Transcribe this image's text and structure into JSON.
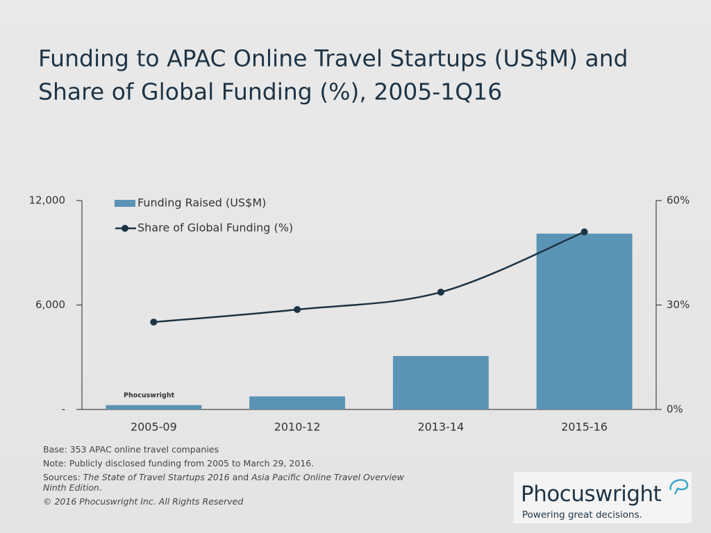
{
  "chart_data": {
    "type": "bar",
    "title": "Funding to APAC Online Travel Startups (US$M) and",
    "title_line2": "Share of Global Funding (%), 2005-1Q16",
    "categories": [
      "2005-09",
      "2010-12",
      "2013-14",
      "2015-16"
    ],
    "series": [
      {
        "name": "Funding Raised (US$M)",
        "type": "bar",
        "color": "#5b93b5",
        "values": [
          250,
          750,
          3070,
          10100
        ]
      },
      {
        "name": "Share of Global Funding (%)",
        "type": "line",
        "axis": "y2",
        "color": "#1c3344",
        "values": [
          25.1,
          28.7,
          33.7,
          51.0
        ]
      }
    ],
    "ylim": [
      0,
      12000
    ],
    "yticks": [
      {
        "value": 0,
        "label": "-"
      },
      {
        "value": 6000,
        "label": "6,000"
      },
      {
        "value": 12000,
        "label": "12,000"
      }
    ],
    "y2lim": [
      0,
      60
    ],
    "y2ticks": [
      {
        "value": 0,
        "label": "0%"
      },
      {
        "value": 30,
        "label": "30%"
      },
      {
        "value": 60,
        "label": "60%"
      }
    ],
    "legend": "upper-left",
    "watermark": "Phocuswright"
  },
  "notes": {
    "base": "Base: 353 APAC online travel companies",
    "note": "Note: Publicly disclosed funding from 2005 to March 29, 2016.",
    "sources": [
      "Sources: ",
      "The State of Travel Startups 2016",
      " and ",
      "Asia Pacific Online Travel Overview Ninth Edition",
      "."
    ],
    "copyright": "© 2016 Phocuswright Inc. All Rights Reserved"
  },
  "logo": {
    "name": "Phocuswright",
    "tagline": "Powering great decisions."
  }
}
